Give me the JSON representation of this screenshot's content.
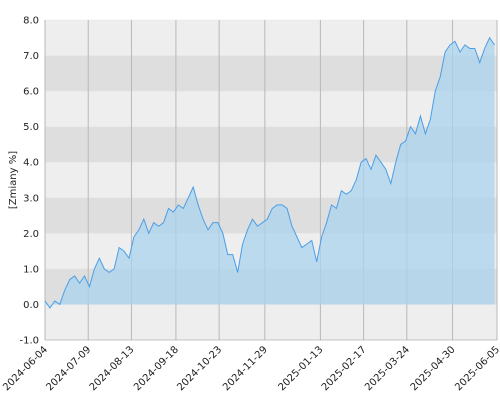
{
  "chart_data": {
    "type": "area",
    "y_label": "[Zmiany %]",
    "x": [
      "2024-06-04",
      "2024-06-08",
      "2024-06-12",
      "2024-06-16",
      "2024-06-20",
      "2024-06-24",
      "2024-06-28",
      "2024-07-02",
      "2024-07-06",
      "2024-07-10",
      "2024-07-14",
      "2024-07-18",
      "2024-07-22",
      "2024-07-26",
      "2024-07-30",
      "2024-08-03",
      "2024-08-07",
      "2024-08-11",
      "2024-08-15",
      "2024-08-19",
      "2024-08-23",
      "2024-08-27",
      "2024-08-31",
      "2024-09-04",
      "2024-09-08",
      "2024-09-12",
      "2024-09-16",
      "2024-09-20",
      "2024-09-24",
      "2024-09-28",
      "2024-10-02",
      "2024-10-06",
      "2024-10-10",
      "2024-10-14",
      "2024-10-18",
      "2024-10-22",
      "2024-10-26",
      "2024-10-30",
      "2024-11-03",
      "2024-11-07",
      "2024-11-11",
      "2024-11-15",
      "2024-11-19",
      "2024-11-23",
      "2024-11-27",
      "2024-12-01",
      "2024-12-05",
      "2024-12-09",
      "2024-12-13",
      "2024-12-17",
      "2024-12-21",
      "2024-12-25",
      "2024-12-29",
      "2025-01-02",
      "2025-01-06",
      "2025-01-10",
      "2025-01-14",
      "2025-01-18",
      "2025-01-22",
      "2025-01-26",
      "2025-01-30",
      "2025-02-03",
      "2025-02-07",
      "2025-02-11",
      "2025-02-15",
      "2025-02-19",
      "2025-02-23",
      "2025-02-27",
      "2025-03-03",
      "2025-03-07",
      "2025-03-11",
      "2025-03-15",
      "2025-03-19",
      "2025-03-23",
      "2025-03-27",
      "2025-03-31",
      "2025-04-04",
      "2025-04-08",
      "2025-04-12",
      "2025-04-16",
      "2025-04-20",
      "2025-04-24",
      "2025-04-28",
      "2025-05-02",
      "2025-05-06",
      "2025-05-10",
      "2025-05-14",
      "2025-05-18",
      "2025-05-22",
      "2025-05-26",
      "2025-05-30",
      "2025-06-03"
    ],
    "values": [
      0.1,
      -0.1,
      0.1,
      0.0,
      0.4,
      0.7,
      0.8,
      0.6,
      0.8,
      0.5,
      1.0,
      1.3,
      1.0,
      0.9,
      1.0,
      1.6,
      1.5,
      1.3,
      1.9,
      2.1,
      2.4,
      2.0,
      2.3,
      2.2,
      2.3,
      2.7,
      2.6,
      2.8,
      2.7,
      3.0,
      3.3,
      2.8,
      2.4,
      2.1,
      2.3,
      2.3,
      2.0,
      1.4,
      1.4,
      0.9,
      1.7,
      2.1,
      2.4,
      2.2,
      2.3,
      2.4,
      2.7,
      2.8,
      2.8,
      2.7,
      2.2,
      1.9,
      1.6,
      1.7,
      1.8,
      1.2,
      1.9,
      2.3,
      2.8,
      2.7,
      3.2,
      3.1,
      3.2,
      3.5,
      4.0,
      4.1,
      3.8,
      4.2,
      4.0,
      3.8,
      3.4,
      4.0,
      4.5,
      4.6,
      5.0,
      4.8,
      5.3,
      4.8,
      5.2,
      6.0,
      6.4,
      7.1,
      7.3,
      7.4,
      7.1,
      7.3,
      7.2,
      7.2,
      6.8,
      7.2,
      7.5,
      7.3
    ],
    "line_color": "#4a9ee8",
    "fill_color": "#a9d3ee",
    "xlim": [
      "2024-06-04",
      "2025-06-05"
    ],
    "xticks": [
      "2024-06-04",
      "2024-07-09",
      "2024-08-13",
      "2024-09-18",
      "2024-10-23",
      "2024-11-29",
      "2025-01-13",
      "2025-02-17",
      "2025-03-24",
      "2025-04-30",
      "2025-06-05"
    ],
    "ylim": [
      -1,
      8
    ],
    "yticks": [
      {
        "value": -1,
        "label": "-1.0"
      },
      {
        "value": 0,
        "label": "0.0"
      },
      {
        "value": 1,
        "label": "1.0"
      },
      {
        "value": 2,
        "label": "2.0"
      },
      {
        "value": 3,
        "label": "3.0"
      },
      {
        "value": 4,
        "label": "4.0"
      },
      {
        "value": 5,
        "label": "5.0"
      },
      {
        "value": 6,
        "label": "6.0"
      },
      {
        "value": 7,
        "label": "7.0"
      },
      {
        "value": 8,
        "label": "8.0"
      }
    ],
    "grid": true
  }
}
